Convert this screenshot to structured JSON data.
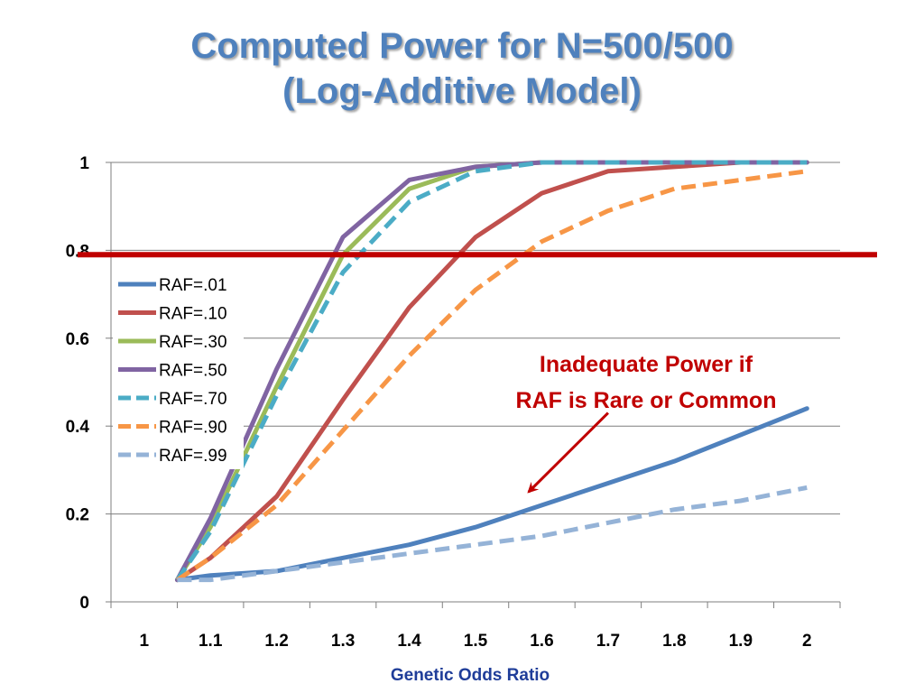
{
  "title": {
    "line1": "Computed Power for N=500/500",
    "line2": "(Log-Additive Model)"
  },
  "colors": {
    "title": "#4F81BD",
    "threshold": "#C00000",
    "annotation": "#C00000",
    "xlabel": "#1F3D99"
  },
  "chart_data": {
    "type": "line",
    "xlabel": "Genetic Odds Ratio",
    "ylabel": "",
    "x_tick_labels": [
      "1",
      "1.1",
      "1.2",
      "1.3",
      "1.4",
      "1.5",
      "1.6",
      "1.7",
      "1.8",
      "1.9",
      "2"
    ],
    "y_tick_labels": [
      "0",
      "0.2",
      "0.4",
      "0.6",
      "0.8",
      "1"
    ],
    "ylim": [
      0,
      1
    ],
    "grid": "horizontal",
    "legend_position": "left",
    "x": [
      1.05,
      1.1,
      1.2,
      1.3,
      1.4,
      1.5,
      1.6,
      1.7,
      1.8,
      1.9,
      2.0
    ],
    "series": [
      {
        "name": "RAF=.01",
        "color": "#4F81BD",
        "dash": "solid",
        "values": [
          0.05,
          0.06,
          0.07,
          0.1,
          0.13,
          0.17,
          0.22,
          0.27,
          0.32,
          0.38,
          0.44
        ]
      },
      {
        "name": "RAF=.10",
        "color": "#C0504D",
        "dash": "solid",
        "values": [
          0.05,
          0.1,
          0.24,
          0.46,
          0.67,
          0.83,
          0.93,
          0.98,
          0.99,
          1.0,
          1.0
        ]
      },
      {
        "name": "RAF=.30",
        "color": "#9BBB59",
        "dash": "solid",
        "values": [
          0.05,
          0.17,
          0.49,
          0.79,
          0.94,
          0.99,
          1.0,
          1.0,
          1.0,
          1.0,
          1.0
        ]
      },
      {
        "name": "RAF=.50",
        "color": "#8064A2",
        "dash": "solid",
        "values": [
          0.05,
          0.19,
          0.53,
          0.83,
          0.96,
          0.99,
          1.0,
          1.0,
          1.0,
          1.0,
          1.0
        ]
      },
      {
        "name": "RAF=.70",
        "color": "#4BACC6",
        "dash": "dashed",
        "values": [
          0.05,
          0.16,
          0.47,
          0.75,
          0.91,
          0.98,
          1.0,
          1.0,
          1.0,
          1.0,
          1.0
        ]
      },
      {
        "name": "RAF=.90",
        "color": "#F79646",
        "dash": "dashed",
        "values": [
          0.05,
          0.1,
          0.22,
          0.39,
          0.56,
          0.71,
          0.82,
          0.89,
          0.94,
          0.96,
          0.98
        ]
      },
      {
        "name": "RAF=.99",
        "color": "#95B3D7",
        "dash": "dashed",
        "values": [
          0.05,
          0.05,
          0.07,
          0.09,
          0.11,
          0.13,
          0.15,
          0.18,
          0.21,
          0.23,
          0.26
        ]
      }
    ],
    "threshold": {
      "y": 0.79,
      "color": "#C00000"
    },
    "annotation": {
      "line1": "Inadequate Power if",
      "line2": "RAF is Rare or Common",
      "arrow_to": {
        "x": 1.58,
        "y": 0.25
      },
      "arrow_from": {
        "x": 1.7,
        "y": 0.43
      }
    }
  }
}
